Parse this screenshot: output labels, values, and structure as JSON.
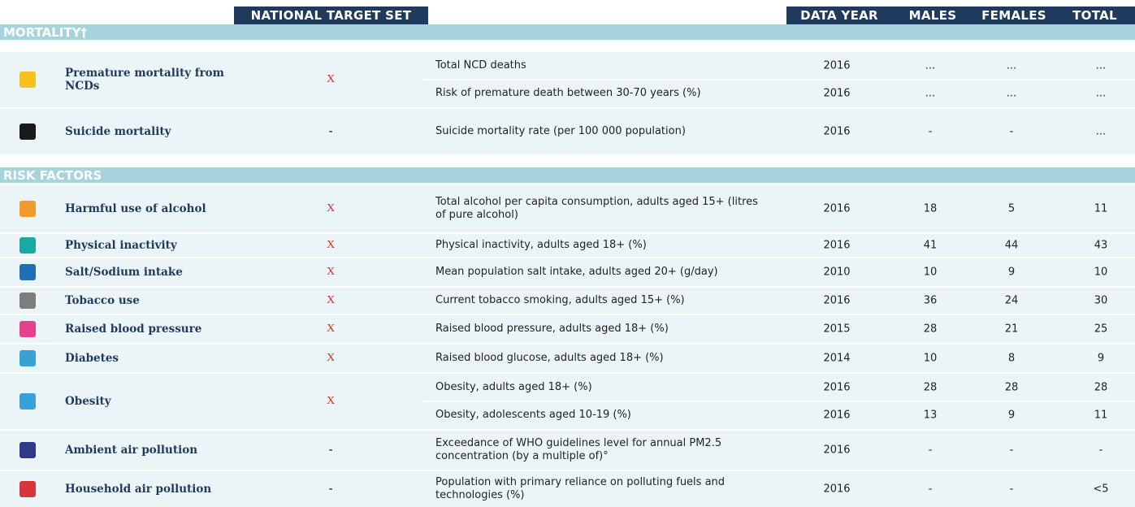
{
  "header": {
    "columns": [
      "NATIONAL TARGET SET",
      "DATA YEAR",
      "MALES",
      "FEMALES",
      "TOTAL"
    ]
  },
  "sections": [
    {
      "title": "MORTALITY†",
      "groups": [
        {
          "name": "Premature mortality from NCDs",
          "target": "X",
          "indicators": [
            {
              "label": "Total NCD deaths",
              "year": 2016,
              "males": "...",
              "females": "...",
              "total": "..."
            },
            {
              "label": "Risk of premature death between 30-70 years (%)",
              "year": 2016,
              "males": "...",
              "females": "...",
              "total": "..."
            }
          ]
        },
        {
          "name": "Suicide mortality",
          "target": "-",
          "indicators": [
            {
              "label": "Suicide mortality rate (per 100 000 population)",
              "year": 2016,
              "males": "-",
              "females": "-",
              "total": "..."
            }
          ]
        }
      ]
    },
    {
      "title": "RISK FACTORS",
      "groups": [
        {
          "name": "Harmful use of alcohol",
          "target": "X",
          "indicators": [
            {
              "label": "Total alcohol per capita consumption, adults aged 15+ (litres of pure alcohol)",
              "year": 2016,
              "males": 18,
              "females": 5,
              "total": 11
            }
          ]
        },
        {
          "name": "Physical inactivity",
          "target": "X",
          "indicators": [
            {
              "label": "Physical inactivity, adults aged 18+ (%)",
              "year": 2016,
              "males": 41,
              "females": 44,
              "total": 43
            }
          ]
        },
        {
          "name": "Salt/Sodium intake",
          "target": "X",
          "indicators": [
            {
              "label": "Mean population salt intake, adults aged 20+ (g/day)",
              "year": 2010,
              "males": 10,
              "females": 9,
              "total": 10
            }
          ]
        },
        {
          "name": "Tobacco use",
          "target": "X",
          "indicators": [
            {
              "label": "Current tobacco smoking, adults aged 15+ (%)",
              "year": 2016,
              "males": 36,
              "females": 24,
              "total": 30
            }
          ]
        },
        {
          "name": "Raised blood pressure",
          "target": "X",
          "indicators": [
            {
              "label": "Raised blood pressure, adults aged 18+ (%)",
              "year": 2015,
              "males": 28,
              "females": 21,
              "total": 25
            }
          ]
        },
        {
          "name": "Diabetes",
          "target": "X",
          "indicators": [
            {
              "label": "Raised blood glucose, adults aged 18+ (%)",
              "year": 2014,
              "males": 10,
              "females": 8,
              "total": 9
            }
          ]
        },
        {
          "name": "Obesity",
          "target": "X",
          "indicators": [
            {
              "label": "Obesity, adults aged 18+ (%)",
              "year": 2016,
              "males": 28,
              "females": 28,
              "total": 28
            },
            {
              "label": "Obesity, adolescents aged 10-19 (%)",
              "year": 2016,
              "males": 13,
              "females": 9,
              "total": 11
            }
          ]
        },
        {
          "name": "Ambient air pollution",
          "target": "-",
          "indicators": [
            {
              "label": "Exceedance of WHO guidelines level for annual PM2.5 concentration (by a multiple of)°",
              "year": 2016,
              "males": "-",
              "females": "-",
              "total": "-"
            }
          ]
        },
        {
          "name": "Household air pollution",
          "target": "-",
          "indicators": [
            {
              "label": "Population with primary reliance on polluting fuels and technologies (%)",
              "year": 2016,
              "males": "-",
              "females": "-",
              "total": "<5"
            }
          ]
        }
      ]
    }
  ]
}
